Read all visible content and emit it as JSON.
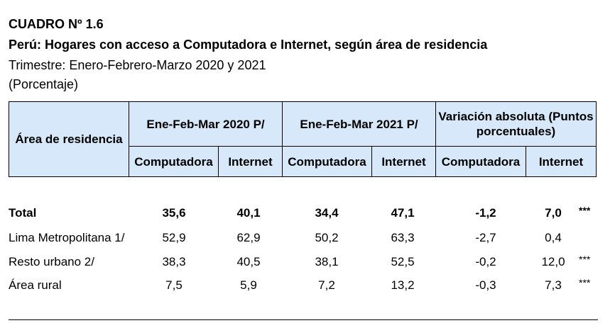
{
  "header": {
    "cuadro": "CUADRO Nº 1.6",
    "title": "Perú: Hogares con acceso a Computadora e Internet, según área de residencia",
    "subtitle": "Trimestre: Enero-Febrero-Marzo 2020 y 2021",
    "units": "(Porcentaje)"
  },
  "table": {
    "col_area": "Área de residencia",
    "group1": "Ene-Feb-Mar 2020 P/",
    "group2": "Ene-Feb-Mar 2021 P/",
    "group3": "Variación absoluta (Puntos porcentuales)",
    "sub_computadora": "Computadora",
    "sub_internet": "Internet",
    "rows": [
      {
        "label": "Total",
        "c2020": "35,6",
        "i2020": "40,1",
        "c2021": "34,4",
        "i2021": "47,1",
        "vc": "-1,2",
        "vi": "7,0",
        "sig": "***"
      },
      {
        "label": "Lima Metropolitana 1/",
        "c2020": "52,9",
        "i2020": "62,9",
        "c2021": "50,2",
        "i2021": "63,3",
        "vc": "-2,7",
        "vi": "0,4",
        "sig": ""
      },
      {
        "label": "Resto urbano 2/",
        "c2020": "38,3",
        "i2020": "40,5",
        "c2021": "38,1",
        "i2021": "52,5",
        "vc": "-0,2",
        "vi": "12,0",
        "sig": "***"
      },
      {
        "label": "Área rural",
        "c2020": "7,5",
        "i2020": "5,9",
        "c2021": "7,2",
        "i2021": "13,2",
        "vc": "-0,3",
        "vi": "7,3",
        "sig": "***"
      }
    ]
  }
}
